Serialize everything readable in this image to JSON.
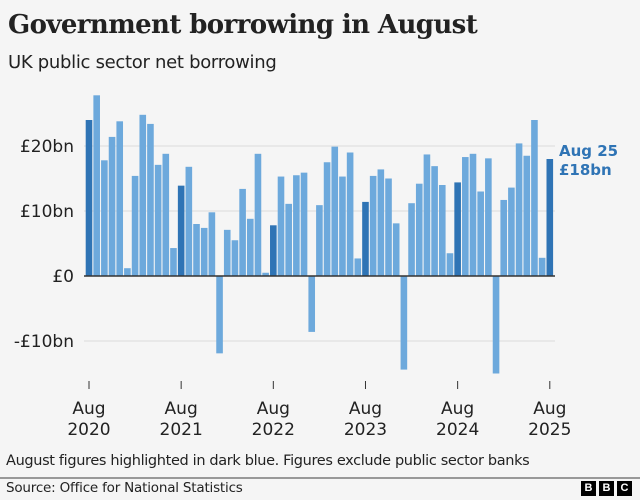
{
  "header": {
    "title": "Government borrowing in August",
    "subtitle": "UK public sector net borrowing"
  },
  "footer": {
    "note": "August figures highlighted in dark blue. Figures exclude public sector banks",
    "source": "Source: Office for National Statistics",
    "logo_letters": [
      "B",
      "B",
      "C"
    ]
  },
  "colors": {
    "highlight": "#2f74b5",
    "normal": "#6da9dc",
    "gridline": "#dcdcdc",
    "axis": "#333333",
    "annotation": "#2f74b5"
  },
  "chart_data": {
    "type": "bar",
    "title": "Government borrowing in August",
    "subtitle": "UK public sector net borrowing",
    "xlabel": "",
    "ylabel": "",
    "ylim": [
      -16,
      29
    ],
    "grid": true,
    "unit": "£bn",
    "y_ticks": [
      {
        "value": -10,
        "label": "-£10bn"
      },
      {
        "value": 0,
        "label": "£0"
      },
      {
        "value": 10,
        "label": "£10bn"
      },
      {
        "value": 20,
        "label": "£20bn"
      }
    ],
    "x_ticks": [
      {
        "index": 0,
        "line1": "Aug",
        "line2": "2020"
      },
      {
        "index": 12,
        "line1": "Aug",
        "line2": "2021"
      },
      {
        "index": 24,
        "line1": "Aug",
        "line2": "2022"
      },
      {
        "index": 36,
        "line1": "Aug",
        "line2": "2023"
      },
      {
        "index": 48,
        "line1": "Aug",
        "line2": "2024"
      },
      {
        "index": 60,
        "line1": "Aug",
        "line2": "2025"
      }
    ],
    "categories": [
      "Aug 2020",
      "Sep 2020",
      "Oct 2020",
      "Nov 2020",
      "Dec 2020",
      "Jan 2021",
      "Feb 2021",
      "Mar 2021",
      "Apr 2021",
      "May 2021",
      "Jun 2021",
      "Jul 2021",
      "Aug 2021",
      "Sep 2021",
      "Oct 2021",
      "Nov 2021",
      "Dec 2021",
      "Jan 2022",
      "Feb 2022",
      "Mar 2022",
      "Apr 2022",
      "May 2022",
      "Jun 2022",
      "Jul 2022",
      "Aug 2022",
      "Sep 2022",
      "Oct 2022",
      "Nov 2022",
      "Dec 2022",
      "Jan 2023",
      "Feb 2023",
      "Mar 2023",
      "Apr 2023",
      "May 2023",
      "Jun 2023",
      "Jul 2023",
      "Aug 2023",
      "Sep 2023",
      "Oct 2023",
      "Nov 2023",
      "Dec 2023",
      "Jan 2024",
      "Feb 2024",
      "Mar 2024",
      "Apr 2024",
      "May 2024",
      "Jun 2024",
      "Jul 2024",
      "Aug 2024",
      "Sep 2024",
      "Oct 2024",
      "Nov 2024",
      "Dec 2024",
      "Jan 2025",
      "Feb 2025",
      "Mar 2025",
      "Apr 2025",
      "May 2025",
      "Jun 2025",
      "Jul 2025",
      "Aug 2025"
    ],
    "values": [
      24.0,
      27.8,
      17.8,
      21.4,
      23.8,
      1.2,
      15.4,
      24.8,
      23.4,
      17.1,
      18.8,
      4.3,
      13.9,
      16.8,
      8.0,
      7.4,
      9.8,
      -11.9,
      7.1,
      5.5,
      13.4,
      8.8,
      18.8,
      0.5,
      7.8,
      15.3,
      11.1,
      15.5,
      15.9,
      -8.6,
      10.9,
      17.5,
      19.9,
      15.3,
      19.0,
      2.7,
      11.4,
      15.4,
      16.4,
      15.0,
      8.1,
      -14.4,
      11.2,
      14.2,
      18.7,
      16.9,
      14.0,
      3.5,
      14.4,
      18.3,
      18.8,
      13.0,
      18.1,
      -15.0,
      11.7,
      13.6,
      20.4,
      18.5,
      24.0,
      2.8,
      18.0
    ],
    "highlighted_indices": [
      0,
      12,
      24,
      36,
      48,
      60
    ],
    "annotation": {
      "index": 60,
      "line1": "Aug 25",
      "line2": "£18bn"
    }
  }
}
